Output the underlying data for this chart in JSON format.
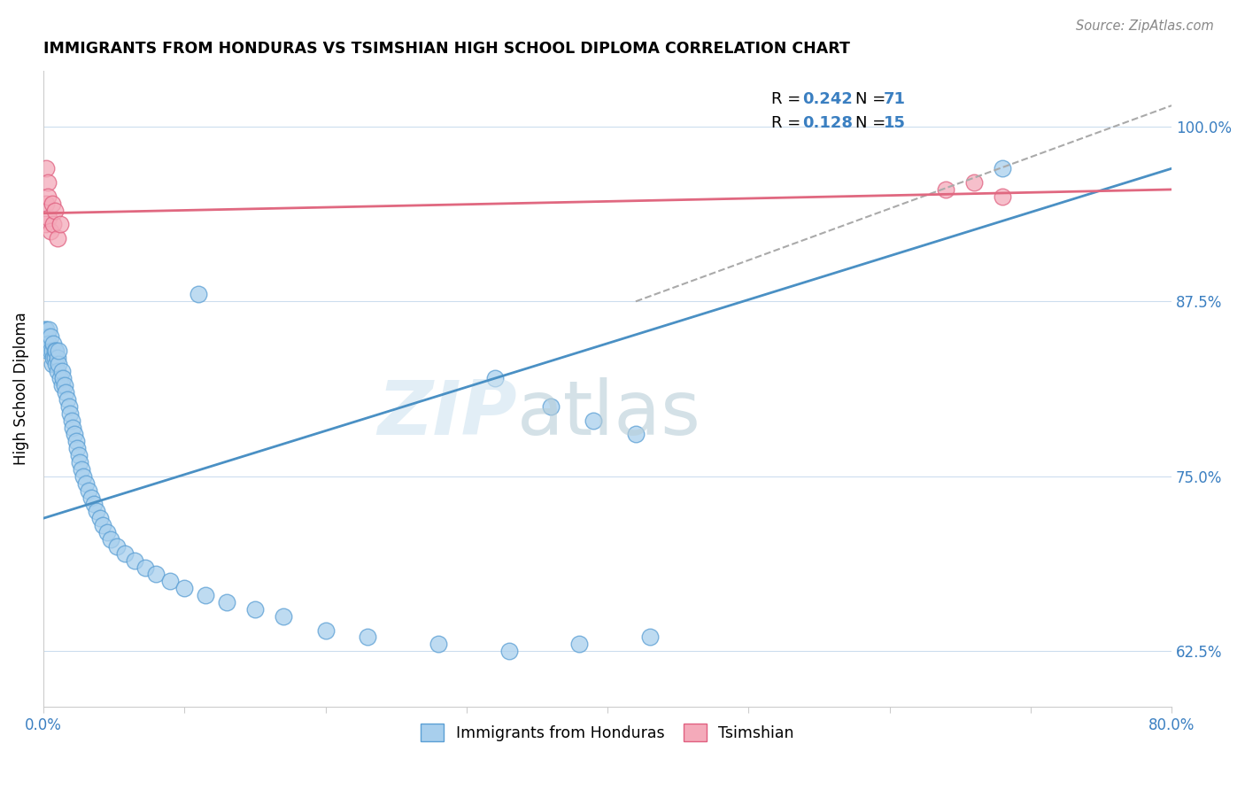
{
  "title": "IMMIGRANTS FROM HONDURAS VS TSIMSHIAN HIGH SCHOOL DIPLOMA CORRELATION CHART",
  "source": "Source: ZipAtlas.com",
  "ylabel": "High School Diploma",
  "ytick_labels": [
    "62.5%",
    "75.0%",
    "87.5%",
    "100.0%"
  ],
  "ytick_values": [
    0.625,
    0.75,
    0.875,
    1.0
  ],
  "xlim": [
    0.0,
    0.8
  ],
  "ylim": [
    0.585,
    1.04
  ],
  "legend_label1": "Immigrants from Honduras",
  "legend_label2": "Tsimshian",
  "R1": "0.242",
  "N1": "71",
  "R2": "0.128",
  "N2": "15",
  "blue_color": "#A8CFED",
  "pink_color": "#F4AABA",
  "blue_edge_color": "#5B9FD4",
  "pink_edge_color": "#E06080",
  "blue_line_color": "#4A90C4",
  "pink_line_color": "#E06880",
  "watermark_zip": "ZIP",
  "watermark_atlas": "atlas",
  "blue_scatter_x": [
    0.001,
    0.002,
    0.002,
    0.003,
    0.003,
    0.004,
    0.004,
    0.005,
    0.005,
    0.006,
    0.006,
    0.007,
    0.007,
    0.008,
    0.008,
    0.009,
    0.009,
    0.01,
    0.01,
    0.011,
    0.011,
    0.012,
    0.013,
    0.013,
    0.014,
    0.015,
    0.016,
    0.017,
    0.018,
    0.019,
    0.02,
    0.021,
    0.022,
    0.023,
    0.024,
    0.025,
    0.026,
    0.027,
    0.028,
    0.03,
    0.032,
    0.034,
    0.036,
    0.038,
    0.04,
    0.042,
    0.045,
    0.048,
    0.052,
    0.058,
    0.065,
    0.072,
    0.08,
    0.09,
    0.1,
    0.115,
    0.13,
    0.15,
    0.17,
    0.2,
    0.23,
    0.28,
    0.33,
    0.38,
    0.43,
    0.11,
    0.32,
    0.36,
    0.39,
    0.42,
    0.68
  ],
  "blue_scatter_y": [
    0.855,
    0.855,
    0.845,
    0.85,
    0.84,
    0.855,
    0.845,
    0.84,
    0.85,
    0.83,
    0.84,
    0.835,
    0.845,
    0.84,
    0.835,
    0.83,
    0.84,
    0.835,
    0.825,
    0.83,
    0.84,
    0.82,
    0.825,
    0.815,
    0.82,
    0.815,
    0.81,
    0.805,
    0.8,
    0.795,
    0.79,
    0.785,
    0.78,
    0.775,
    0.77,
    0.765,
    0.76,
    0.755,
    0.75,
    0.745,
    0.74,
    0.735,
    0.73,
    0.725,
    0.72,
    0.715,
    0.71,
    0.705,
    0.7,
    0.695,
    0.69,
    0.685,
    0.68,
    0.675,
    0.67,
    0.665,
    0.66,
    0.655,
    0.65,
    0.64,
    0.635,
    0.63,
    0.625,
    0.63,
    0.635,
    0.88,
    0.82,
    0.8,
    0.79,
    0.78,
    0.97
  ],
  "pink_scatter_x": [
    0.001,
    0.002,
    0.002,
    0.003,
    0.003,
    0.004,
    0.005,
    0.006,
    0.007,
    0.008,
    0.01,
    0.012,
    0.64,
    0.66,
    0.68
  ],
  "pink_scatter_y": [
    0.93,
    0.97,
    0.945,
    0.96,
    0.95,
    0.935,
    0.925,
    0.945,
    0.93,
    0.94,
    0.92,
    0.93,
    0.955,
    0.96,
    0.95
  ],
  "blue_line_x": [
    0.0,
    0.8
  ],
  "blue_line_y": [
    0.72,
    0.97
  ],
  "pink_line_x": [
    0.0,
    0.8
  ],
  "pink_line_y": [
    0.938,
    0.955
  ],
  "dash_line_x": [
    0.42,
    0.8
  ],
  "dash_line_y": [
    0.875,
    1.015
  ]
}
